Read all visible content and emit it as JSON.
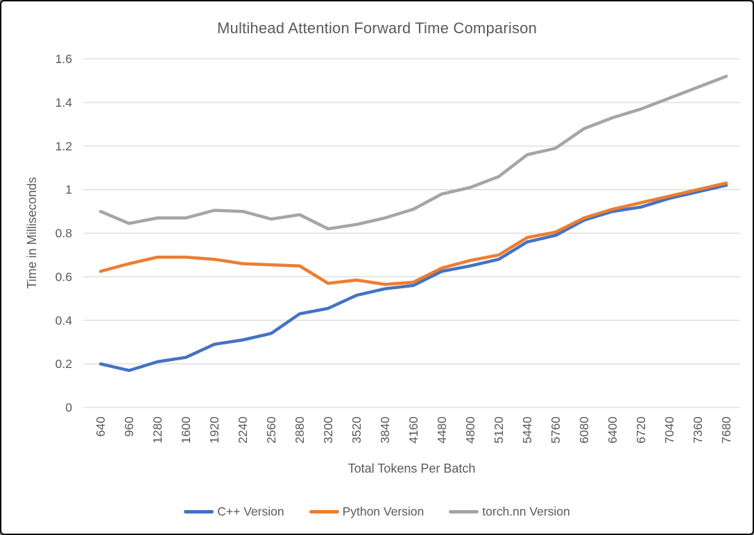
{
  "frame": {
    "background": "#ffffff",
    "border_color": "#000000"
  },
  "chart_data": {
    "type": "line",
    "title": "Multihead Attention Forward Time Comparison",
    "xlabel": "Total Tokens Per Batch",
    "ylabel": "Time in Milliseconds",
    "ylim": [
      0,
      1.6
    ],
    "y_ticks": [
      "0",
      "0.2",
      "0.4",
      "0.6",
      "0.8",
      "1",
      "1.2",
      "1.4",
      "1.6"
    ],
    "y_tick_values": [
      0,
      0.2,
      0.4,
      0.6,
      0.8,
      1.0,
      1.2,
      1.4,
      1.6
    ],
    "grid": "horizontal",
    "gridline_color": "#D9D9D9",
    "axis_text_color": "#595959",
    "title_color": "#595959",
    "legend_position": "bottom",
    "x_tick_rotation": -90,
    "categories": [
      640,
      960,
      1280,
      1600,
      1920,
      2240,
      2560,
      2880,
      3200,
      3520,
      3840,
      4160,
      4480,
      4800,
      5120,
      5440,
      5760,
      6080,
      6400,
      6720,
      7040,
      7360,
      7680
    ],
    "series": [
      {
        "name": "C++ Version",
        "color": "#4472C4",
        "values": [
          0.2,
          0.17,
          0.21,
          0.23,
          0.29,
          0.31,
          0.34,
          0.43,
          0.455,
          0.515,
          0.545,
          0.56,
          0.625,
          0.65,
          0.68,
          0.76,
          0.79,
          0.86,
          0.9,
          0.92,
          0.96,
          0.99,
          1.02
        ]
      },
      {
        "name": "Python Version",
        "color": "#ED7D31",
        "values": [
          0.625,
          0.66,
          0.69,
          0.69,
          0.68,
          0.66,
          0.655,
          0.65,
          0.57,
          0.585,
          0.565,
          0.575,
          0.64,
          0.675,
          0.7,
          0.78,
          0.805,
          0.87,
          0.91,
          0.94,
          0.97,
          1.0,
          1.03
        ]
      },
      {
        "name": "torch.nn Version",
        "color": "#A5A5A5",
        "values": [
          0.9,
          0.845,
          0.87,
          0.87,
          0.905,
          0.9,
          0.865,
          0.885,
          0.82,
          0.84,
          0.87,
          0.91,
          0.98,
          1.01,
          1.06,
          1.16,
          1.19,
          1.28,
          1.33,
          1.37,
          1.42,
          1.47,
          1.52
        ]
      }
    ]
  }
}
